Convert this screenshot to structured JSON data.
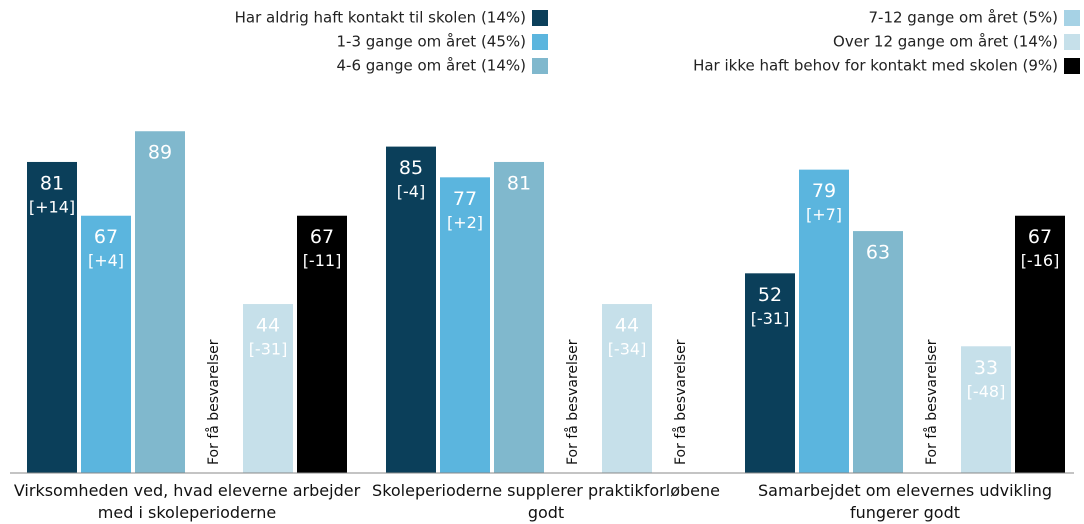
{
  "chart_data": {
    "type": "bar",
    "categories": [
      "Virksomheden ved, hvad eleverne arbejder\nmed i skoleperioderne",
      "Skoleperioderne supplerer praktikforløbene\ngodt",
      "Samarbejdet om elevernes udvikling\nfungerer godt"
    ],
    "series": [
      {
        "name": "Har aldrig haft kontakt til skolen (14%)",
        "color": "#0b3f5a",
        "values": [
          81,
          85,
          52
        ],
        "change_labels": [
          "[+14]",
          "[-4]",
          "[-31]"
        ]
      },
      {
        "name": "1-3 gange om året (45%)",
        "color": "#5bb5de",
        "values": [
          67,
          77,
          79
        ],
        "change_labels": [
          "[+4]",
          "[+2]",
          "[+7]"
        ]
      },
      {
        "name": "4-6 gange om året (14%)",
        "color": "#80b8cd",
        "values": [
          89,
          81,
          63
        ],
        "change_labels": [
          null,
          null,
          null
        ]
      },
      {
        "name": "7-12 gange om året (5%)",
        "color": "#a6d2e5",
        "values": [
          null,
          null,
          null
        ],
        "change_labels": [
          null,
          null,
          null
        ]
      },
      {
        "name": "Over 12 gange om året (14%)",
        "color": "#c6e0ea",
        "values": [
          44,
          44,
          33
        ],
        "change_labels": [
          "[-31]",
          "[-34]",
          "[-48]"
        ]
      },
      {
        "name": "Har ikke haft behov for kontakt med skolen (9%)",
        "color": "#000000",
        "values": [
          67,
          null,
          67
        ],
        "change_labels": [
          "[-11]",
          null,
          "[-16]"
        ]
      }
    ],
    "no_data_label": "For få besvarelser",
    "ylim": [
      0,
      100
    ]
  }
}
